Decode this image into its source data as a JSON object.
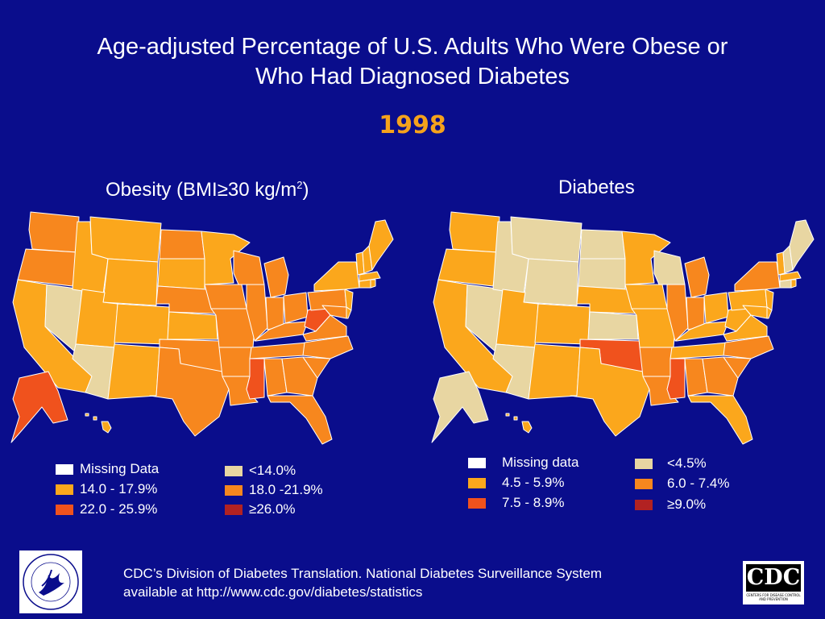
{
  "slide": {
    "title_line1": "Age-adjusted Percentage of U.S. Adults Who Were Obese or",
    "title_line2": "Who Had Diagnosed Diabetes",
    "year": "1998"
  },
  "obesity_map": {
    "title": "Obesity (BMI≥30 kg/m",
    "title_sup": "2",
    "title_end": ")",
    "legend": [
      {
        "label": "Missing Data",
        "color": "#ffffff"
      },
      {
        "label": "<14.0%",
        "color": "#e8d6a2"
      },
      {
        "label": "14.0 - 17.9%",
        "color": "#fba71c"
      },
      {
        "label": "18.0 -21.9%",
        "color": "#f7871e"
      },
      {
        "label": "22.0 - 25.9%",
        "color": "#f0521d"
      },
      {
        "label": "≥26.0%",
        "color": "#b22222"
      }
    ]
  },
  "diabetes_map": {
    "title": "Diabetes",
    "legend": [
      {
        "label": "Missing data",
        "color": "#ffffff"
      },
      {
        "label": "<4.5%",
        "color": "#e8d6a2"
      },
      {
        "label": "4.5 - 5.9%",
        "color": "#fba71c"
      },
      {
        "label": "6.0 - 7.4%",
        "color": "#f7871e"
      },
      {
        "label": "7.5 - 8.9%",
        "color": "#f0521d"
      },
      {
        "label": "≥9.0%",
        "color": "#b22222"
      }
    ]
  },
  "footer": {
    "line1": "CDC’s Division of Diabetes Translation.  National Diabetes Surveillance System",
    "line2": "available at http://www.cdc.gov/diabetes/statistics"
  },
  "logos": {
    "hhs_icon": "hhs-seal-icon",
    "cdc_text": "CDC",
    "cdc_small": "CENTERS FOR DISEASE CONTROL AND PREVENTION"
  }
}
